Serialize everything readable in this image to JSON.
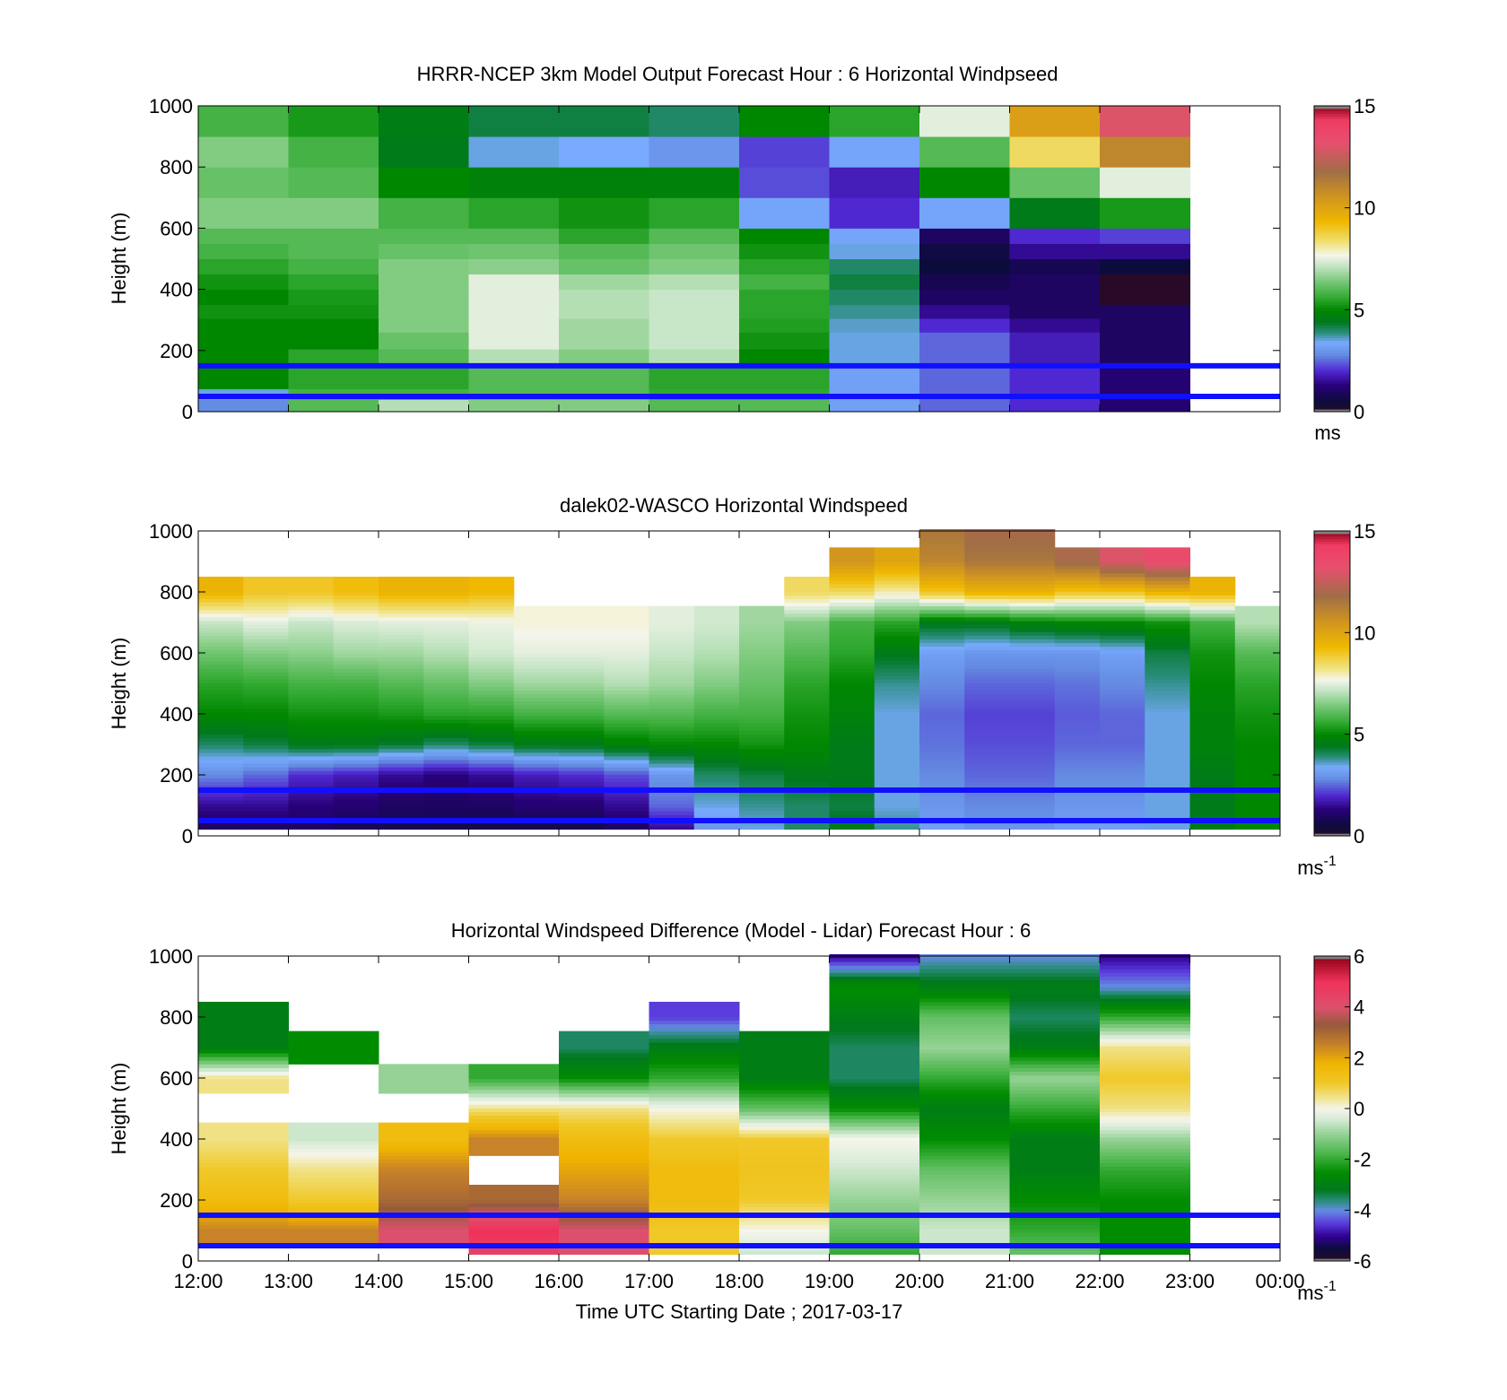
{
  "chart_data": [
    {
      "type": "heatmap",
      "title": "HRRR-NCEP 3km Model Output   Forecast Hour : 6 Horizontal Windpseed",
      "ylabel": "Height (m)",
      "xlabel": "",
      "ylim": [
        0,
        1000
      ],
      "xlim": [
        0,
        12
      ],
      "y_ticks": [
        "0",
        "200",
        "400",
        "600",
        "800",
        "1000"
      ],
      "x_ticks": [
        "12:00",
        "13:00",
        "14:00",
        "15:00",
        "16:00",
        "17:00",
        "18:00",
        "19:00",
        "20:00",
        "21:00",
        "22:00",
        "23:00",
        "00:00"
      ],
      "grid": false,
      "reference_lines_m": [
        50,
        150
      ],
      "reference_line_color": "#1010ff",
      "colorbar": {
        "min": 0,
        "max": 15,
        "ticks": [
          "0",
          "5",
          "10",
          "15"
        ],
        "unit": "ms"
      },
      "x_hours": [
        12,
        13,
        14,
        15,
        16,
        17,
        18,
        19,
        20,
        21,
        22
      ],
      "y_levels_m": [
        0,
        40,
        75,
        110,
        150,
        205,
        260,
        305,
        350,
        400,
        450,
        500,
        550,
        600,
        700,
        800,
        900,
        1000
      ],
      "values_ms": [
        [
          2.8,
          6.0,
          7.0,
          6.5,
          6.5,
          6.0,
          6.0,
          3.2,
          2.5,
          2.0,
          1.2
        ],
        [
          3.5,
          5.8,
          5.8,
          6.0,
          6.0,
          5.6,
          5.6,
          3.2,
          2.5,
          2.0,
          1.2
        ],
        [
          5.0,
          5.5,
          5.5,
          6.0,
          6.0,
          5.5,
          5.5,
          3.2,
          2.5,
          2.0,
          1.2
        ],
        [
          5.0,
          5.5,
          5.5,
          6.0,
          6.0,
          5.5,
          5.5,
          3.2,
          2.5,
          2.0,
          1.2
        ],
        [
          5.0,
          5.5,
          6.0,
          7.0,
          6.5,
          7.0,
          5.0,
          3.5,
          2.5,
          1.8,
          1.0
        ],
        [
          5.0,
          5.0,
          6.2,
          7.5,
          6.8,
          7.2,
          5.2,
          3.5,
          2.5,
          1.8,
          1.0
        ],
        [
          5.0,
          5.0,
          6.5,
          7.5,
          6.8,
          7.2,
          5.4,
          3.6,
          2.0,
          1.5,
          1.0
        ],
        [
          5.2,
          5.2,
          6.5,
          7.5,
          7.0,
          7.2,
          5.5,
          3.8,
          1.5,
          1.0,
          1.0
        ],
        [
          5.0,
          5.3,
          6.5,
          7.5,
          7.0,
          7.2,
          5.5,
          4.0,
          1.0,
          1.0,
          0.0
        ],
        [
          5.2,
          5.5,
          6.5,
          7.5,
          6.8,
          7.0,
          5.8,
          4.2,
          0.8,
          1.0,
          0.0
        ],
        [
          5.5,
          5.8,
          6.5,
          6.6,
          6.2,
          6.5,
          5.5,
          4.0,
          0.5,
          0.8,
          0.5
        ],
        [
          5.8,
          6.0,
          6.2,
          6.3,
          6.0,
          6.3,
          5.2,
          3.5,
          0.6,
          1.5,
          1.5
        ],
        [
          6.0,
          6.0,
          6.0,
          6.0,
          5.5,
          6.0,
          5.0,
          3.3,
          1.0,
          2.0,
          2.2
        ],
        [
          6.5,
          6.5,
          5.8,
          5.5,
          5.2,
          5.5,
          3.3,
          2.0,
          3.3,
          4.5,
          5.3
        ],
        [
          6.2,
          6.0,
          5.0,
          4.8,
          4.8,
          4.8,
          2.3,
          1.8,
          5.0,
          6.2,
          7.5
        ],
        [
          6.5,
          5.8,
          4.5,
          3.5,
          3.4,
          3.0,
          2.2,
          3.3,
          6.0,
          8.5,
          11.0
        ],
        [
          5.8,
          5.3,
          4.6,
          4.2,
          4.2,
          4.0,
          5.0,
          5.5,
          7.5,
          10.2,
          13.0
        ]
      ]
    },
    {
      "type": "heatmap",
      "title": "dalek02-WASCO  Horizontal Windspeed",
      "ylabel": "Height (m)",
      "xlabel": "",
      "ylim": [
        0,
        1000
      ],
      "xlim": [
        0,
        12
      ],
      "y_ticks": [
        "0",
        "200",
        "400",
        "600",
        "800",
        "1000"
      ],
      "x_ticks": [
        "12:00",
        "13:00",
        "14:00",
        "15:00",
        "16:00",
        "17:00",
        "18:00",
        "19:00",
        "20:00",
        "21:00",
        "22:00",
        "23:00",
        "00:00"
      ],
      "grid": false,
      "reference_lines_m": [
        50,
        150
      ],
      "reference_line_color": "#1010ff",
      "colorbar": {
        "min": 0,
        "max": 15,
        "ticks": [
          "0",
          "5",
          "10",
          "15"
        ],
        "unit": "ms",
        "unit_exponent": "-1"
      },
      "x_hours": [
        12.0,
        12.5,
        13.0,
        13.5,
        14.0,
        14.5,
        15.0,
        15.5,
        16.0,
        16.5,
        17.0,
        17.5,
        18.0,
        18.5,
        19.0,
        19.5,
        20.0,
        20.5,
        21.0,
        21.5,
        22.0,
        22.5,
        23.0,
        23.5
      ],
      "profile_heights_m": [
        25,
        100,
        200,
        300,
        400,
        500,
        600,
        700,
        800,
        900,
        1000
      ],
      "profiles_ms": [
        [
          1.0,
          1.5,
          2.8,
          4.0,
          5.0,
          5.5,
          6.3,
          7.2,
          9.5,
          null,
          null
        ],
        [
          1.0,
          1.5,
          2.5,
          4.2,
          5.0,
          5.6,
          6.5,
          7.5,
          9.0,
          null,
          null
        ],
        [
          1.0,
          1.3,
          2.0,
          4.5,
          5.2,
          5.8,
          6.6,
          7.2,
          9.0,
          null,
          null
        ],
        [
          0.8,
          1.2,
          1.8,
          4.5,
          5.2,
          5.8,
          6.8,
          7.4,
          9.2,
          null,
          null
        ],
        [
          0.8,
          1.0,
          1.5,
          4.3,
          5.3,
          6.0,
          6.8,
          7.5,
          9.5,
          null,
          null
        ],
        [
          0.7,
          1.0,
          1.3,
          4.0,
          5.5,
          6.2,
          7.0,
          7.5,
          9.5,
          null,
          null
        ],
        [
          0.7,
          1.0,
          1.5,
          4.2,
          5.5,
          6.5,
          7.3,
          7.6,
          9.3,
          null,
          null
        ],
        [
          0.7,
          1.2,
          1.8,
          4.5,
          5.8,
          6.8,
          7.5,
          7.8,
          null,
          null,
          null
        ],
        [
          0.7,
          1.2,
          2.0,
          4.5,
          5.8,
          6.8,
          7.5,
          7.8,
          null,
          null,
          null
        ],
        [
          1.0,
          1.5,
          2.3,
          4.8,
          6.0,
          7.0,
          7.5,
          7.8,
          null,
          null,
          null
        ],
        [
          1.5,
          2.5,
          3.0,
          5.0,
          6.0,
          6.8,
          7.2,
          7.5,
          null,
          null,
          null
        ],
        [
          3.0,
          3.5,
          4.0,
          5.0,
          5.8,
          6.5,
          7.0,
          7.3,
          null,
          null,
          null
        ],
        [
          3.5,
          3.8,
          4.2,
          5.2,
          5.8,
          6.2,
          6.5,
          6.8,
          null,
          null,
          null
        ],
        [
          4.0,
          4.0,
          4.5,
          5.0,
          5.2,
          5.5,
          6.0,
          6.5,
          8.5,
          null,
          null
        ],
        [
          4.5,
          4.2,
          4.5,
          4.5,
          4.8,
          5.0,
          5.5,
          5.8,
          8.5,
          10.5,
          null
        ],
        [
          3.8,
          3.5,
          3.5,
          3.5,
          3.5,
          3.8,
          4.5,
          5.5,
          8.0,
          10.0,
          null
        ],
        [
          3.2,
          3.0,
          2.8,
          2.6,
          2.5,
          2.8,
          3.2,
          4.5,
          9.0,
          11.0,
          11.5
        ],
        [
          3.0,
          2.8,
          2.5,
          2.3,
          2.2,
          2.5,
          3.0,
          4.5,
          9.5,
          11.5,
          12.0
        ],
        [
          3.0,
          2.8,
          2.5,
          2.3,
          2.2,
          2.5,
          3.0,
          4.8,
          9.5,
          11.5,
          12.0
        ],
        [
          3.2,
          3.0,
          2.8,
          2.5,
          2.4,
          2.6,
          3.0,
          5.0,
          9.0,
          12.0,
          null
        ],
        [
          3.2,
          3.0,
          2.8,
          2.5,
          2.5,
          2.8,
          3.2,
          5.0,
          9.0,
          13.0,
          null
        ],
        [
          3.5,
          3.5,
          3.5,
          3.5,
          3.5,
          3.8,
          4.2,
          5.2,
          9.5,
          13.5,
          null
        ],
        [
          4.5,
          4.5,
          4.5,
          4.8,
          4.8,
          5.0,
          5.2,
          5.8,
          9.5,
          null,
          null
        ],
        [
          5.0,
          5.0,
          5.0,
          5.0,
          5.2,
          5.5,
          6.0,
          7.0,
          null,
          null,
          null
        ]
      ]
    },
    {
      "type": "heatmap",
      "title": "Horizontal Windspeed Difference (Model - Lidar) Forecast Hour : 6",
      "ylabel": "Height (m)",
      "xlabel": "Time UTC  Starting Date ; 2017-03-17",
      "ylim": [
        0,
        1000
      ],
      "xlim": [
        0,
        12
      ],
      "y_ticks": [
        "0",
        "200",
        "400",
        "600",
        "800",
        "1000"
      ],
      "x_ticks": [
        "12:00",
        "13:00",
        "14:00",
        "15:00",
        "16:00",
        "17:00",
        "18:00",
        "19:00",
        "20:00",
        "21:00",
        "22:00",
        "23:00",
        "00:00"
      ],
      "grid": false,
      "reference_lines_m": [
        50,
        150
      ],
      "reference_line_color": "#1010ff",
      "colorbar": {
        "min": -6,
        "max": 6,
        "ticks": [
          "-6",
          "-4",
          "-2",
          "0",
          "2",
          "4",
          "6"
        ],
        "unit": "ms",
        "unit_exponent": "-1"
      },
      "x_hours": [
        12,
        13,
        14,
        15,
        16,
        17,
        18,
        19,
        20,
        21,
        22
      ],
      "profile_heights_m": [
        25,
        100,
        200,
        300,
        400,
        500,
        600,
        700,
        800,
        900,
        1000
      ],
      "profiles_ms": [
        [
          null,
          2.5,
          1.5,
          1.0,
          0.5,
          null,
          0.5,
          -3.0,
          -3.0,
          null,
          null
        ],
        [
          null,
          2.5,
          1.0,
          0.5,
          -0.5,
          null,
          null,
          -2.5,
          null,
          null,
          null
        ],
        [
          null,
          4.0,
          3.0,
          2.5,
          1.5,
          null,
          -1.0,
          null,
          null,
          null,
          null
        ],
        [
          4.5,
          5.0,
          3.0,
          null,
          2.5,
          0.5,
          -2.0,
          null,
          null,
          null,
          null
        ],
        [
          4.0,
          4.0,
          2.5,
          2.0,
          1.5,
          0.5,
          -2.5,
          -3.5,
          null,
          null,
          null
        ],
        [
          1.0,
          1.0,
          1.5,
          1.5,
          1.0,
          0.0,
          -2.0,
          -3.0,
          -4.5,
          null,
          null
        ],
        [
          -0.5,
          0.0,
          1.0,
          1.2,
          1.0,
          -1.5,
          -3.0,
          -3.0,
          null,
          null,
          null
        ],
        [
          -2.0,
          -1.5,
          -1.0,
          -0.5,
          0.0,
          -2.5,
          -3.5,
          -3.5,
          -3.0,
          -2.5,
          -5.0
        ],
        [
          -0.5,
          -0.5,
          -1.0,
          -1.5,
          -2.5,
          -3.0,
          -2.0,
          -1.0,
          -1.5,
          -3.0,
          -4.0
        ],
        [
          -1.5,
          -2.0,
          -2.5,
          -3.0,
          -3.0,
          -2.0,
          -1.0,
          -3.0,
          -3.5,
          -3.0,
          -4.0
        ],
        [
          -2.5,
          -2.5,
          -2.5,
          -2.0,
          -1.0,
          0.5,
          1.0,
          0.5,
          -2.0,
          -4.0,
          -5.0
        ]
      ]
    }
  ]
}
